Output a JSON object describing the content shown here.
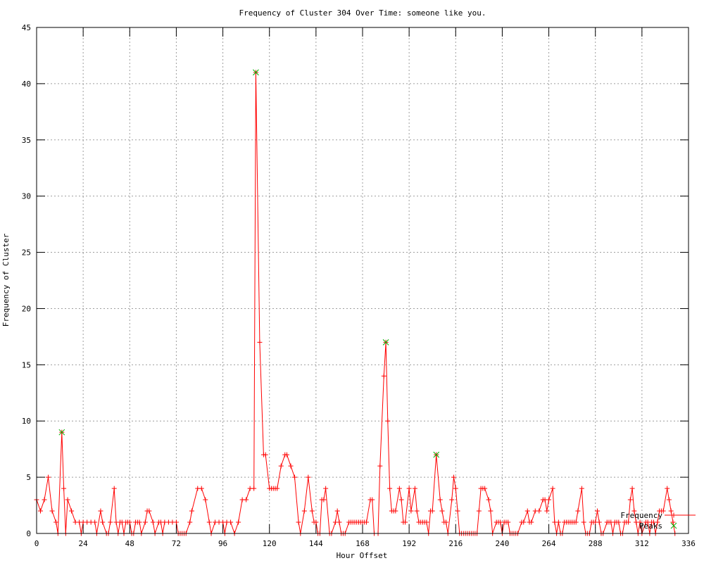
{
  "title": "Frequency of Cluster 304 Over Time: someone like you.",
  "axes": {
    "x": {
      "label": "Hour Offset",
      "min": 0,
      "max": 336,
      "tick_step": 24,
      "ticks": [
        0,
        24,
        48,
        72,
        96,
        120,
        144,
        168,
        192,
        216,
        240,
        264,
        288,
        312,
        336
      ]
    },
    "y": {
      "label": "Frequency of Cluster",
      "min": 0,
      "max": 45,
      "tick_step": 5,
      "ticks": [
        0,
        5,
        10,
        15,
        20,
        25,
        30,
        35,
        40,
        45
      ]
    }
  },
  "legend": {
    "position": "bottom-right",
    "items": [
      {
        "label": "Frequency",
        "color": "#ff0000",
        "marker": "plus",
        "has_line": true
      },
      {
        "label": "Peaks",
        "color": "#00b400",
        "marker": "cross",
        "has_line": false
      }
    ]
  },
  "colors": {
    "series": "#ff0000",
    "peaks": "#00b400",
    "grid": "#9e9e9e",
    "border": "#000000",
    "background": "#ffffff"
  },
  "chart_data": {
    "type": "line",
    "title": "Frequency of Cluster 304 Over Time: someone like you.",
    "xlabel": "Hour Offset",
    "ylabel": "Frequency of Cluster",
    "xlim": [
      0,
      336
    ],
    "ylim": [
      0,
      45
    ],
    "grid": true,
    "legend_position": "bottom-right",
    "series": [
      {
        "name": "Frequency",
        "color": "#ff0000",
        "marker": "plus",
        "points": [
          [
            0,
            3
          ],
          [
            2,
            2
          ],
          [
            4,
            3
          ],
          [
            6,
            5
          ],
          [
            8,
            2
          ],
          [
            10,
            1
          ],
          [
            11,
            0
          ],
          [
            13,
            9
          ],
          [
            14,
            4
          ],
          [
            15,
            0
          ],
          [
            16,
            3
          ],
          [
            18,
            2
          ],
          [
            20,
            1
          ],
          [
            22,
            1
          ],
          [
            23,
            0
          ],
          [
            24,
            1
          ],
          [
            26,
            1
          ],
          [
            28,
            1
          ],
          [
            30,
            1
          ],
          [
            31,
            0
          ],
          [
            33,
            2
          ],
          [
            34,
            1
          ],
          [
            36,
            0
          ],
          [
            37,
            0
          ],
          [
            38,
            1
          ],
          [
            40,
            4
          ],
          [
            41,
            1
          ],
          [
            42,
            0
          ],
          [
            43,
            1
          ],
          [
            44,
            1
          ],
          [
            45,
            0
          ],
          [
            46,
            1
          ],
          [
            47,
            1
          ],
          [
            48,
            1
          ],
          [
            49,
            0
          ],
          [
            50,
            0
          ],
          [
            51,
            1
          ],
          [
            52,
            1
          ],
          [
            53,
            1
          ],
          [
            54,
            0
          ],
          [
            56,
            1
          ],
          [
            57,
            2
          ],
          [
            58,
            2
          ],
          [
            60,
            1
          ],
          [
            61,
            0
          ],
          [
            63,
            1
          ],
          [
            64,
            1
          ],
          [
            65,
            0
          ],
          [
            66,
            1
          ],
          [
            68,
            1
          ],
          [
            70,
            1
          ],
          [
            72,
            1
          ],
          [
            73,
            0
          ],
          [
            74,
            0
          ],
          [
            75,
            0
          ],
          [
            76,
            0
          ],
          [
            77,
            0
          ],
          [
            79,
            1
          ],
          [
            80,
            2
          ],
          [
            83,
            4
          ],
          [
            85,
            4
          ],
          [
            87,
            3
          ],
          [
            89,
            1
          ],
          [
            90,
            0
          ],
          [
            92,
            1
          ],
          [
            94,
            1
          ],
          [
            96,
            1
          ],
          [
            97,
            0
          ],
          [
            98,
            1
          ],
          [
            100,
            1
          ],
          [
            102,
            0
          ],
          [
            104,
            1
          ],
          [
            106,
            3
          ],
          [
            108,
            3
          ],
          [
            110,
            4
          ],
          [
            112,
            4
          ],
          [
            113,
            41
          ],
          [
            115,
            17
          ],
          [
            117,
            7
          ],
          [
            118,
            7
          ],
          [
            120,
            4
          ],
          [
            121,
            4
          ],
          [
            122,
            4
          ],
          [
            123,
            4
          ],
          [
            124,
            4
          ],
          [
            126,
            6
          ],
          [
            128,
            7
          ],
          [
            129,
            7
          ],
          [
            131,
            6
          ],
          [
            133,
            5
          ],
          [
            135,
            1
          ],
          [
            136,
            0
          ],
          [
            138,
            2
          ],
          [
            140,
            5
          ],
          [
            142,
            2
          ],
          [
            143,
            1
          ],
          [
            144,
            1
          ],
          [
            145,
            0
          ],
          [
            146,
            0
          ],
          [
            147,
            3
          ],
          [
            148,
            3
          ],
          [
            149,
            4
          ],
          [
            151,
            0
          ],
          [
            152,
            0
          ],
          [
            154,
            1
          ],
          [
            155,
            2
          ],
          [
            156,
            1
          ],
          [
            157,
            0
          ],
          [
            158,
            0
          ],
          [
            159,
            0
          ],
          [
            161,
            1
          ],
          [
            162,
            1
          ],
          [
            163,
            1
          ],
          [
            164,
            1
          ],
          [
            165,
            1
          ],
          [
            166,
            1
          ],
          [
            167,
            1
          ],
          [
            168,
            1
          ],
          [
            169,
            1
          ],
          [
            170,
            1
          ],
          [
            172,
            3
          ],
          [
            173,
            3
          ],
          [
            174,
            0
          ],
          [
            176,
            0
          ],
          [
            177,
            6
          ],
          [
            179,
            14
          ],
          [
            180,
            17
          ],
          [
            181,
            10
          ],
          [
            182,
            4
          ],
          [
            183,
            2
          ],
          [
            184,
            2
          ],
          [
            185,
            2
          ],
          [
            187,
            4
          ],
          [
            188,
            3
          ],
          [
            189,
            1
          ],
          [
            190,
            1
          ],
          [
            192,
            4
          ],
          [
            193,
            2
          ],
          [
            195,
            4
          ],
          [
            196,
            2
          ],
          [
            197,
            1
          ],
          [
            198,
            1
          ],
          [
            199,
            1
          ],
          [
            200,
            1
          ],
          [
            201,
            1
          ],
          [
            202,
            0
          ],
          [
            203,
            2
          ],
          [
            204,
            2
          ],
          [
            206,
            7
          ],
          [
            208,
            3
          ],
          [
            209,
            2
          ],
          [
            210,
            1
          ],
          [
            211,
            1
          ],
          [
            212,
            0
          ],
          [
            214,
            3
          ],
          [
            215,
            5
          ],
          [
            216,
            4
          ],
          [
            217,
            2
          ],
          [
            218,
            0
          ],
          [
            219,
            0
          ],
          [
            220,
            0
          ],
          [
            221,
            0
          ],
          [
            222,
            0
          ],
          [
            223,
            0
          ],
          [
            224,
            0
          ],
          [
            225,
            0
          ],
          [
            226,
            0
          ],
          [
            227,
            0
          ],
          [
            228,
            2
          ],
          [
            229,
            4
          ],
          [
            230,
            4
          ],
          [
            231,
            4
          ],
          [
            233,
            3
          ],
          [
            234,
            2
          ],
          [
            235,
            0
          ],
          [
            237,
            1
          ],
          [
            238,
            1
          ],
          [
            239,
            1
          ],
          [
            240,
            0
          ],
          [
            241,
            1
          ],
          [
            242,
            1
          ],
          [
            243,
            1
          ],
          [
            244,
            0
          ],
          [
            245,
            0
          ],
          [
            246,
            0
          ],
          [
            247,
            0
          ],
          [
            248,
            0
          ],
          [
            250,
            1
          ],
          [
            251,
            1
          ],
          [
            253,
            2
          ],
          [
            254,
            1
          ],
          [
            255,
            1
          ],
          [
            257,
            2
          ],
          [
            259,
            2
          ],
          [
            261,
            3
          ],
          [
            262,
            3
          ],
          [
            263,
            2
          ],
          [
            264,
            3
          ],
          [
            266,
            4
          ],
          [
            267,
            1
          ],
          [
            268,
            0
          ],
          [
            269,
            1
          ],
          [
            270,
            0
          ],
          [
            271,
            0
          ],
          [
            272,
            1
          ],
          [
            273,
            1
          ],
          [
            274,
            1
          ],
          [
            275,
            1
          ],
          [
            276,
            1
          ],
          [
            277,
            1
          ],
          [
            278,
            1
          ],
          [
            279,
            2
          ],
          [
            281,
            4
          ],
          [
            282,
            1
          ],
          [
            283,
            0
          ],
          [
            284,
            0
          ],
          [
            285,
            0
          ],
          [
            286,
            1
          ],
          [
            287,
            1
          ],
          [
            288,
            1
          ],
          [
            289,
            2
          ],
          [
            290,
            1
          ],
          [
            291,
            0
          ],
          [
            292,
            0
          ],
          [
            294,
            1
          ],
          [
            295,
            1
          ],
          [
            296,
            1
          ],
          [
            297,
            0
          ],
          [
            298,
            1
          ],
          [
            299,
            1
          ],
          [
            300,
            1
          ],
          [
            301,
            0
          ],
          [
            302,
            0
          ],
          [
            303,
            1
          ],
          [
            304,
            1
          ],
          [
            305,
            1
          ],
          [
            306,
            3
          ],
          [
            307,
            4
          ],
          [
            308,
            2
          ],
          [
            309,
            1
          ],
          [
            310,
            0
          ],
          [
            311,
            1
          ],
          [
            312,
            0
          ],
          [
            314,
            1
          ],
          [
            315,
            1
          ],
          [
            316,
            0
          ],
          [
            317,
            1
          ],
          [
            318,
            1
          ],
          [
            319,
            0
          ],
          [
            320,
            1
          ],
          [
            321,
            2
          ],
          [
            322,
            2
          ],
          [
            323,
            2
          ],
          [
            325,
            4
          ],
          [
            326,
            3
          ],
          [
            327,
            2
          ],
          [
            328,
            1
          ],
          [
            329,
            0
          ]
        ]
      },
      {
        "name": "Peaks",
        "color": "#00b400",
        "marker": "cross",
        "points": [
          [
            13,
            9
          ],
          [
            113,
            41
          ],
          [
            180,
            17
          ],
          [
            206,
            7
          ]
        ]
      }
    ]
  }
}
